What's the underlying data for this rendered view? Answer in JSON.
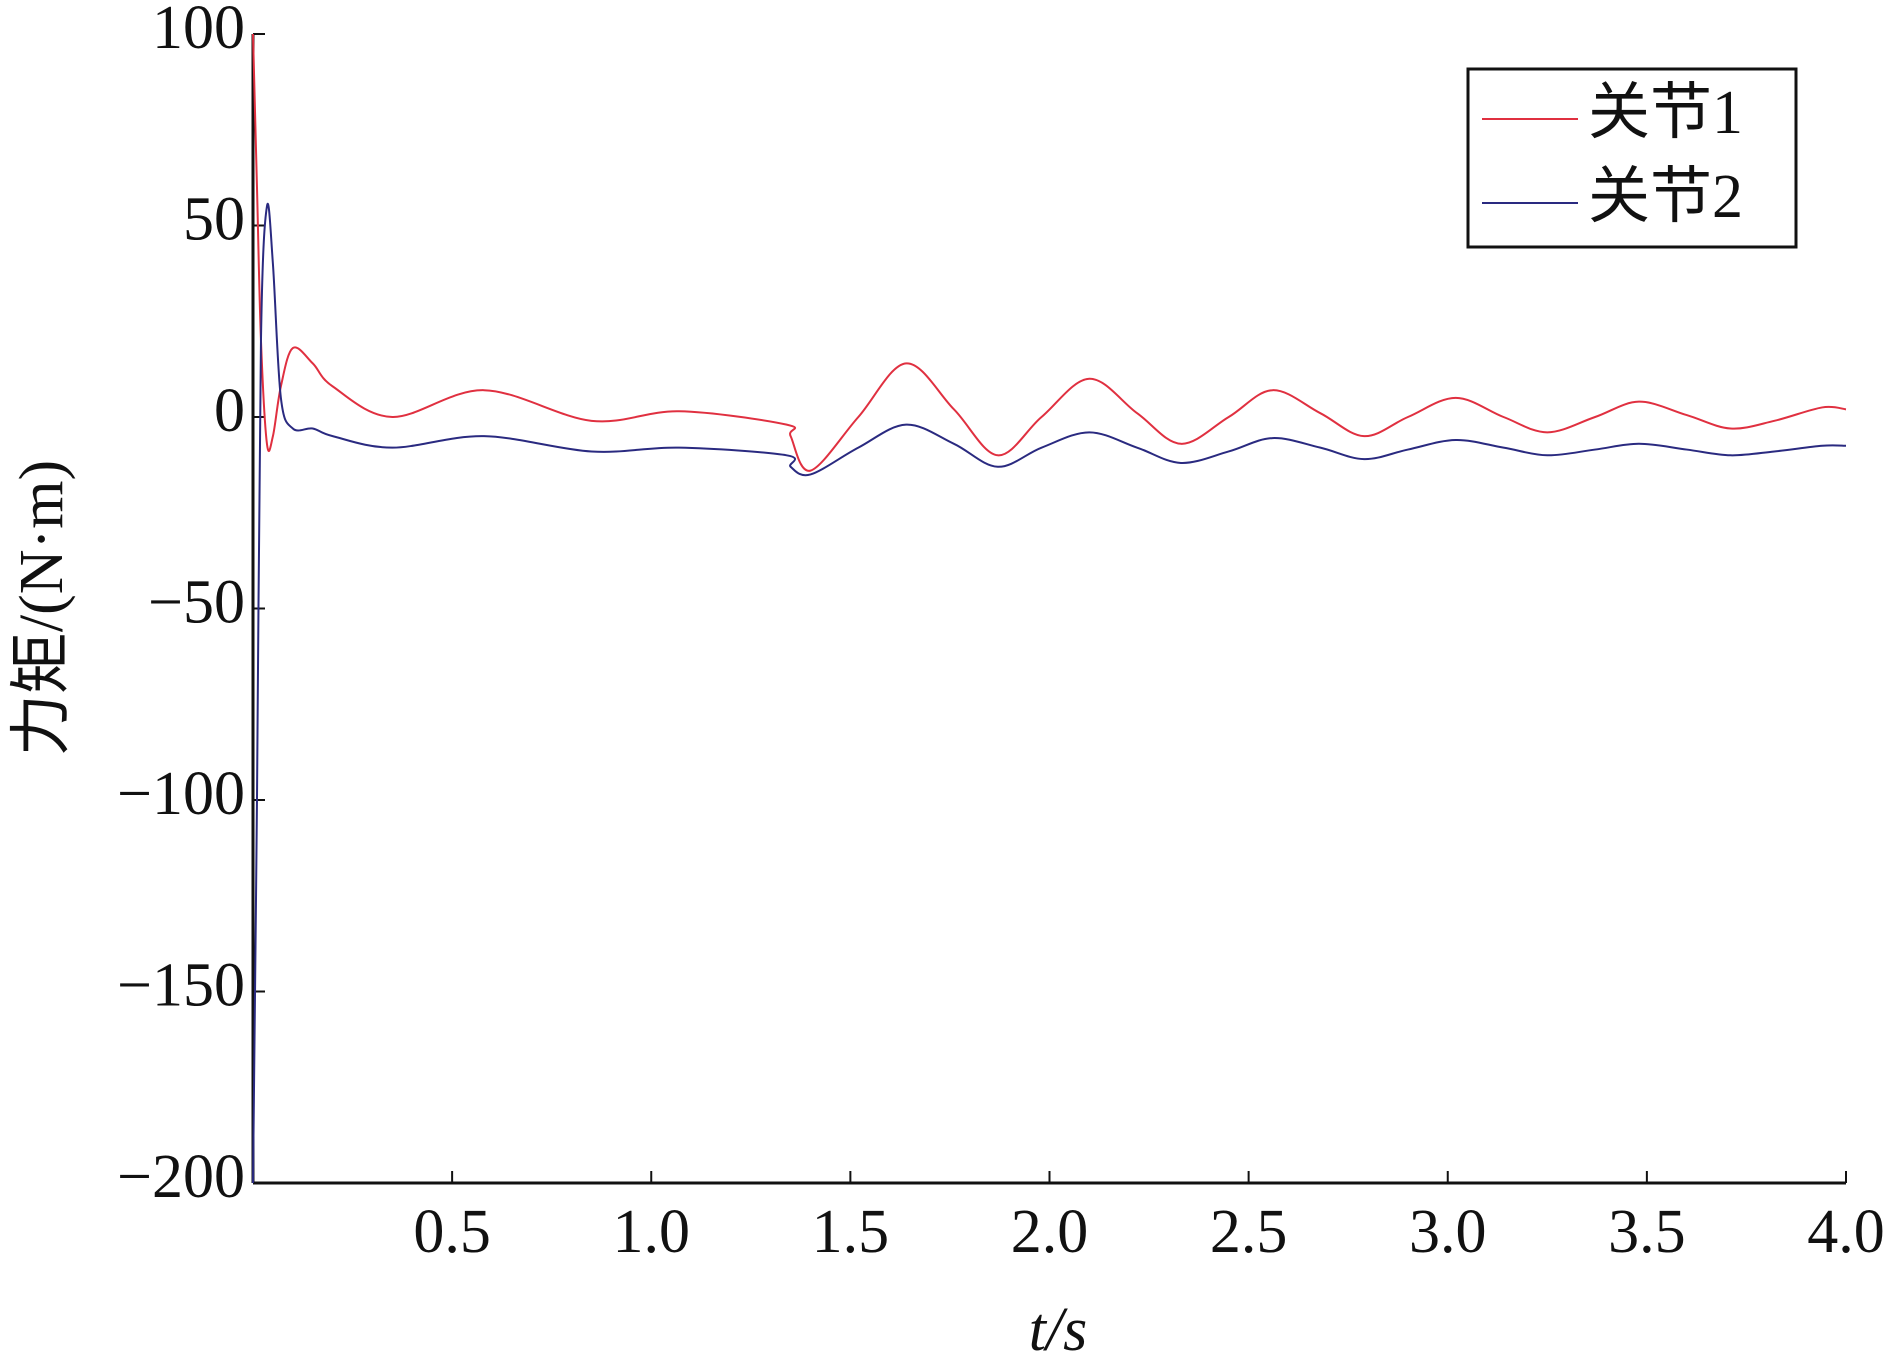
{
  "chart_data": {
    "type": "line",
    "x_label": "t/s",
    "y_label": "力矩/(N·m)",
    "x": [
      0,
      0.01,
      0.02,
      0.035,
      0.05,
      0.07,
      0.1,
      0.15,
      0.2,
      0.35,
      0.58,
      0.85,
      1.07,
      1.34,
      1.35,
      1.4,
      1.52,
      1.64,
      1.76,
      1.87,
      1.98,
      2.1,
      2.22,
      2.33,
      2.45,
      2.56,
      2.68,
      2.79,
      2.9,
      3.02,
      3.14,
      3.25,
      3.37,
      3.48,
      3.6,
      3.71,
      3.82,
      3.94,
      4.0
    ],
    "series": [
      {
        "name": "关节1",
        "color": "#e03040",
        "values": [
          100,
          60,
          20,
          -7,
          -5,
          8,
          18,
          14,
          8,
          0,
          7,
          -1,
          1.5,
          -2,
          -5,
          -14,
          0,
          14,
          2,
          -10,
          0,
          10,
          1,
          -7,
          0,
          7,
          1,
          -5,
          0,
          5,
          0,
          -4,
          0,
          4,
          0.5,
          -3,
          -1,
          2.5,
          2
        ]
      },
      {
        "name": "关节2",
        "color": "#2a2a80",
        "values": [
          -200,
          -100,
          20,
          55,
          40,
          5,
          -3,
          -3,
          -5,
          -8,
          -5,
          -9,
          -8,
          -10,
          -13,
          -15,
          -8,
          -2,
          -7,
          -13,
          -8,
          -4,
          -8,
          -12,
          -9,
          -5.5,
          -8,
          -11,
          -8.5,
          -6,
          -8,
          -10,
          -8.5,
          -7,
          -8.5,
          -10,
          -9,
          -7.5,
          -7.5
        ]
      }
    ],
    "xlim": [
      0,
      4
    ],
    "ylim": [
      -200,
      100
    ],
    "xticks": [
      0.5,
      {
        "value": 1,
        "label": "1.0"
      },
      1.5,
      {
        "value": 2,
        "label": "2.0"
      },
      2.5,
      {
        "value": 3,
        "label": "3.0"
      },
      3.5,
      {
        "value": 4,
        "label": "4.0"
      }
    ],
    "yticks": [
      100,
      50,
      0,
      {
        "value": -50,
        "label": "−50"
      },
      {
        "value": -100,
        "label": "−100"
      },
      {
        "value": -150,
        "label": "−150"
      },
      {
        "value": -200,
        "label": "−200"
      }
    ],
    "legend": "upper right",
    "grid": false
  }
}
